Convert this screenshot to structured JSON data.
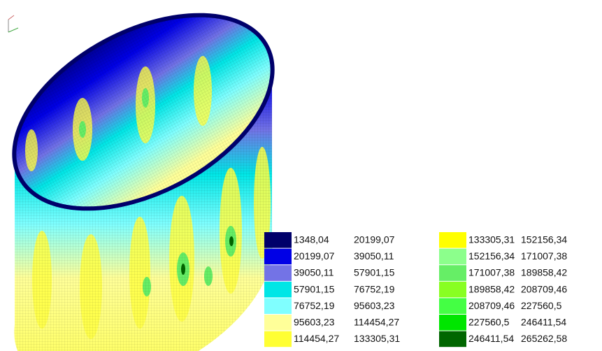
{
  "legend": {
    "items": [
      {
        "from": "1348,04",
        "to": "20199,07",
        "color": "#00006a"
      },
      {
        "from": "20199,07",
        "to": "39050,11",
        "color": "#0000e6"
      },
      {
        "from": "39050,11",
        "to": "57901,15",
        "color": "#7373e6"
      },
      {
        "from": "57901,15",
        "to": "76752,19",
        "color": "#00e6e6"
      },
      {
        "from": "76752,19",
        "to": "95603,23",
        "color": "#80ffff"
      },
      {
        "from": "95603,23",
        "to": "114454,27",
        "color": "#ffff99"
      },
      {
        "from": "114454,27",
        "to": "133305,31",
        "color": "#ffff33"
      },
      {
        "from": "133305,31",
        "to": "152156,34",
        "color": "#ffff00"
      },
      {
        "from": "152156,34",
        "to": "171007,38",
        "color": "#8cff8c"
      },
      {
        "from": "171007,38",
        "to": "189858,42",
        "color": "#66ee66"
      },
      {
        "from": "189858,42",
        "to": "208709,46",
        "color": "#88ff22"
      },
      {
        "from": "208709,46",
        "to": "227560,5",
        "color": "#44ff44"
      },
      {
        "from": "227560,5",
        "to": "246411,54",
        "color": "#00e600"
      },
      {
        "from": "246411,54",
        "to": "265262,58",
        "color": "#006600"
      }
    ]
  }
}
